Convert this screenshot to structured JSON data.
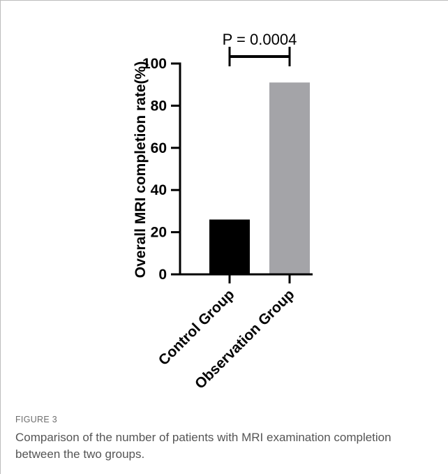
{
  "figure": {
    "label": "FIGURE 3",
    "caption": "Comparison of the number of patients with MRI examination completion between the two groups."
  },
  "chart_data": {
    "type": "bar",
    "categories": [
      "Control Group",
      "Observation Group"
    ],
    "values": [
      26,
      91
    ],
    "colors": [
      "#000000",
      "#a4a4a8"
    ],
    "title": "",
    "xlabel": "",
    "ylabel": "Overall MRI completion rate(%)",
    "ylim": [
      0,
      100
    ],
    "yticks": [
      0,
      20,
      40,
      60,
      80,
      100
    ],
    "grid": false,
    "legend": "none",
    "annotations": [
      {
        "type": "significance-bracket",
        "between": [
          "Control Group",
          "Observation Group"
        ],
        "text": "P = 0.0004"
      }
    ]
  }
}
